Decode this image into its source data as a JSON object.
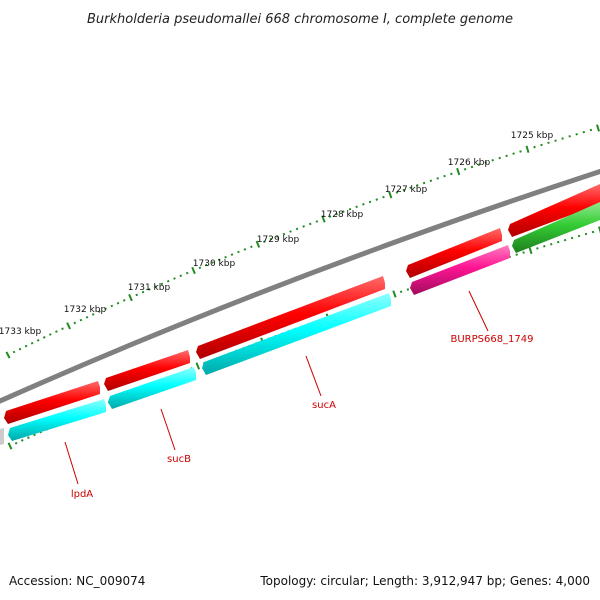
{
  "title": "Burkholderia pseudomallei 668 chromosome I, complete genome",
  "footer": {
    "accession": "Accession: NC_009074",
    "summary": "Topology: circular; Length: 3,912,947 bp; Genes: 4,000"
  },
  "colors": {
    "backbone": "#808080",
    "forward_gene": "#ff0000",
    "reverse_cds_cyan": "#00ffff",
    "reverse_cds_magenta": "#ff1493",
    "reverse_cds_green": "#33cc33",
    "gene_label": "#cc0000",
    "tick": "#228b22",
    "partial_feature": "#cccccc"
  },
  "kbp_labels": [
    "1725 kbp",
    "1726 kbp",
    "1727 kbp",
    "1728 kbp",
    "1729 kbp",
    "1730 kbp",
    "1731 kbp",
    "1732 kbp",
    "1733 kbp"
  ],
  "gene_labels": [
    "lpdA",
    "sucB",
    "sucA",
    "BURPS668_1749"
  ]
}
